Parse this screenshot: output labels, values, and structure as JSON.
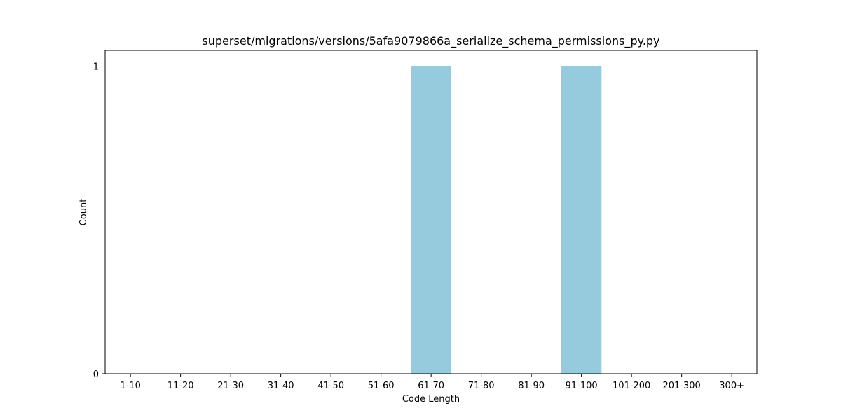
{
  "chart_data": {
    "type": "bar",
    "title": "superset/migrations/versions/5afa9079866a_serialize_schema_permissions_py.py",
    "xlabel": "Code Length",
    "ylabel": "Count",
    "categories": [
      "1-10",
      "11-20",
      "21-30",
      "31-40",
      "41-50",
      "51-60",
      "61-70",
      "71-80",
      "81-90",
      "91-100",
      "101-200",
      "201-300",
      "300+"
    ],
    "values": [
      0,
      0,
      0,
      0,
      0,
      0,
      1,
      0,
      0,
      1,
      0,
      0,
      0
    ],
    "ylim": [
      0,
      1
    ],
    "yticks": [
      0,
      1
    ],
    "bar_color": "#96cadd",
    "grid": false,
    "legend": "none"
  }
}
